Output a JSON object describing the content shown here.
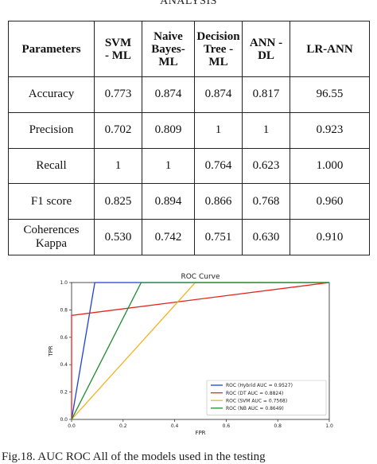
{
  "page": {
    "top_caption": "ANALYSIS",
    "figure_caption": "Fig.18. AUC ROC All of the models used in the testing"
  },
  "table": {
    "headers": [
      "Parameters",
      "SVM\n- ML",
      "Naive\nBayes-\nML",
      "Decision\nTree -\nML",
      "ANN -\nDL",
      "LR-ANN"
    ],
    "rows": [
      [
        "Accuracy",
        "0.773",
        "0.874",
        "0.874",
        "0.817",
        "96.55"
      ],
      [
        "Precision",
        "0.702",
        "0.809",
        "1",
        "1",
        "0.923"
      ],
      [
        "Recall",
        "1",
        "1",
        "0.764",
        "0.623",
        "1.000"
      ],
      [
        "F1 score",
        "0.825",
        "0.894",
        "0.866",
        "0.768",
        "0.960"
      ],
      [
        "Coherences\nKappa",
        "0.530",
        "0.742",
        "0.751",
        "0.630",
        "0.910"
      ]
    ]
  },
  "chart_data": {
    "type": "line",
    "title": "ROC Curve",
    "xlabel": "FPR",
    "ylabel": "TPR",
    "xlim": [
      0.0,
      1.0
    ],
    "ylim": [
      0.0,
      1.0
    ],
    "xticks": [
      "0.0",
      "0.2",
      "0.4",
      "0.6",
      "0.8",
      "1.0"
    ],
    "yticks": [
      "0.0",
      "0.2",
      "0.4",
      "0.6",
      "0.8",
      "1.0"
    ],
    "grid": false,
    "legend_position": "lower-right",
    "series": [
      {
        "name": "ROC (Hybrid AUC = 0.9527)",
        "color": "#1f3fd6",
        "x": [
          0.0,
          0.09,
          1.0
        ],
        "y": [
          0.0,
          1.0,
          1.0
        ]
      },
      {
        "name": "ROC (DT AUC = 0.8824)",
        "color": "#e3261f",
        "x": [
          0.0,
          0.0,
          1.0
        ],
        "y": [
          0.0,
          0.76,
          1.0
        ]
      },
      {
        "name": "ROC (SVM AUC = 0.7568)",
        "color": "#f2b21b",
        "x": [
          0.0,
          0.48,
          1.0
        ],
        "y": [
          0.0,
          1.0,
          1.0
        ]
      },
      {
        "name": "ROC (NB AUC = 0.8649)",
        "color": "#1d8c2e",
        "x": [
          0.0,
          0.27,
          1.0
        ],
        "y": [
          0.0,
          1.0,
          1.0
        ]
      }
    ]
  }
}
